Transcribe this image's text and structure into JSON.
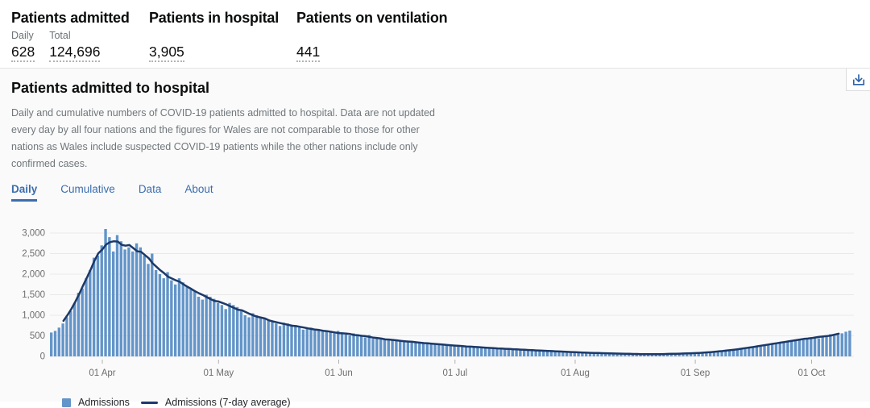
{
  "stats": {
    "columns": [
      {
        "title": "Patients admitted",
        "items": [
          {
            "label": "Daily",
            "value": "628"
          },
          {
            "label": "Total",
            "value": "124,696"
          }
        ]
      },
      {
        "title": "Patients in hospital",
        "items": [
          {
            "label": "",
            "value": "3,905"
          }
        ]
      },
      {
        "title": "Patients on ventilation",
        "items": [
          {
            "label": "",
            "value": "441"
          }
        ]
      }
    ]
  },
  "card": {
    "title": "Patients admitted to hospital",
    "description": "Daily and cumulative numbers of COVID-19 patients admitted to hospital. Data are not updated every day by all four nations and the figures for Wales are not comparable to those for other nations as Wales include suspected COVID-19 patients while the other nations include only confirmed cases.",
    "tabs": [
      {
        "label": "Daily",
        "active": true
      },
      {
        "label": "Cumulative",
        "active": false
      },
      {
        "label": "Data",
        "active": false
      },
      {
        "label": "About",
        "active": false
      }
    ]
  },
  "legend": [
    {
      "type": "square",
      "color": "#6394ca",
      "label": "Admissions"
    },
    {
      "type": "line",
      "color": "#1d3a6e",
      "label": "Admissions (7-day average)"
    }
  ],
  "colors": {
    "bar": "#6294c9",
    "line": "#1c3968",
    "tab_blue": "#3b6dae",
    "grid": "#e9e9e9",
    "axis_text": "#6e6e6e",
    "tick": "#b1b1b1",
    "download_icon": "#2e61a6"
  },
  "chart_data": {
    "type": "bar",
    "title": "Patients admitted to hospital (Daily)",
    "xlabel": "",
    "ylabel": "",
    "ylim": [
      0,
      3000
    ],
    "grid": true,
    "legend_position": "bottom-left",
    "y_ticks": [
      0,
      500,
      1000,
      1500,
      2000,
      2500,
      3000
    ],
    "y_tick_labels": [
      "0",
      "500",
      "1,000",
      "1,500",
      "2,000",
      "2,500",
      "3,000"
    ],
    "x_tick_labels": [
      "01 Apr",
      "01 May",
      "01 Jun",
      "01 Jul",
      "01 Aug",
      "01 Sep",
      "01 Oct"
    ],
    "x_tick_day_indices": [
      13,
      43,
      74,
      104,
      135,
      166,
      196
    ],
    "series": [
      {
        "name": "Admissions",
        "type": "bar",
        "values": [
          580,
          620,
          700,
          800,
          950,
          1100,
          1300,
          1550,
          1650,
          1900,
          2100,
          2400,
          2450,
          2700,
          3099,
          2900,
          2550,
          2950,
          2800,
          2600,
          2650,
          2550,
          2750,
          2650,
          2450,
          2250,
          2500,
          2100,
          2000,
          1900,
          2050,
          1850,
          1750,
          1900,
          1800,
          1700,
          1650,
          1600,
          1450,
          1380,
          1500,
          1450,
          1400,
          1300,
          1250,
          1150,
          1300,
          1250,
          1200,
          1100,
          1000,
          950,
          1050,
          1000,
          950,
          920,
          880,
          850,
          800,
          740,
          820,
          800,
          770,
          740,
          700,
          650,
          680,
          700,
          670,
          640,
          620,
          600,
          580,
          560,
          620,
          560,
          530,
          510,
          560,
          540,
          480,
          460,
          520,
          430,
          450,
          430,
          420,
          400,
          390,
          380,
          400,
          380,
          360,
          340,
          330,
          340,
          330,
          320,
          310,
          300,
          290,
          280,
          290,
          270,
          260,
          250,
          240,
          250,
          240,
          230,
          220,
          230,
          210,
          200,
          195,
          200,
          185,
          190,
          175,
          180,
          165,
          170,
          155,
          160,
          150,
          145,
          140,
          140,
          130,
          130,
          125,
          120,
          115,
          110,
          105,
          100,
          95,
          95,
          90,
          85,
          85,
          80,
          80,
          75,
          75,
          70,
          70,
          65,
          65,
          60,
          60,
          58,
          55,
          55,
          52,
          50,
          52,
          55,
          58,
          60,
          62,
          65,
          68,
          70,
          72,
          75,
          80,
          85,
          90,
          95,
          100,
          110,
          120,
          130,
          140,
          150,
          160,
          172,
          185,
          200,
          215,
          230,
          245,
          260,
          275,
          290,
          305,
          320,
          335,
          350,
          365,
          380,
          395,
          410,
          425,
          440,
          455,
          470,
          440,
          480,
          510,
          540,
          500,
          520,
          560,
          600,
          628
        ]
      },
      {
        "name": "Admissions (7-day average)",
        "type": "line",
        "derived_from": "7-day centered moving average of Admissions"
      }
    ]
  }
}
